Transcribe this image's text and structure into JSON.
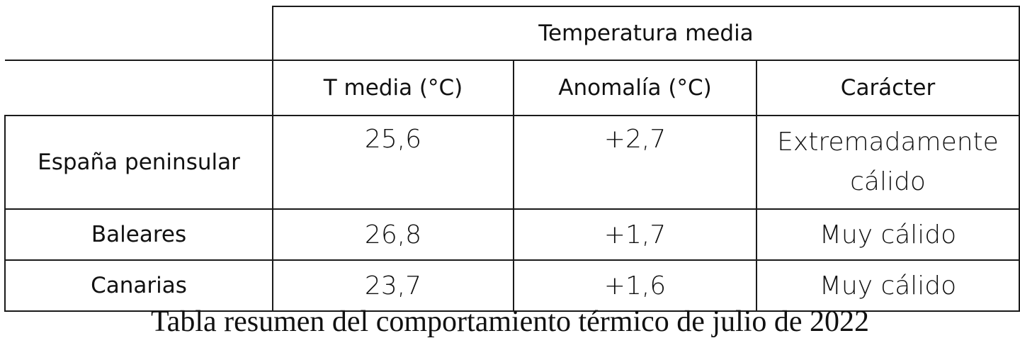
{
  "table": {
    "group_header": "Temperatura media",
    "columns": [
      "T media (°C)",
      "Anomalía (°C)",
      "Carácter"
    ],
    "rows": [
      {
        "region": "España peninsular",
        "t_media": "25,6",
        "anomalia": "+2,7",
        "caracter": "Extremadamente cálido"
      },
      {
        "region": "Baleares",
        "t_media": "26,8",
        "anomalia": "+1,7",
        "caracter": "Muy cálido"
      },
      {
        "region": "Canarias",
        "t_media": "23,7",
        "anomalia": "+1,6",
        "caracter": "Muy cálido"
      }
    ]
  },
  "caption": "Tabla resumen del comportamiento térmico de julio de 2022",
  "chart_data": {
    "type": "table",
    "group_header": "Temperatura media",
    "columns": [
      "T media (°C)",
      "Anomalía (°C)",
      "Carácter"
    ],
    "row_labels": [
      "España peninsular",
      "Baleares",
      "Canarias"
    ],
    "values": [
      [
        25.6,
        2.7,
        "Extremadamente cálido"
      ],
      [
        26.8,
        1.7,
        "Muy cálido"
      ],
      [
        23.7,
        1.6,
        "Muy cálido"
      ]
    ]
  }
}
